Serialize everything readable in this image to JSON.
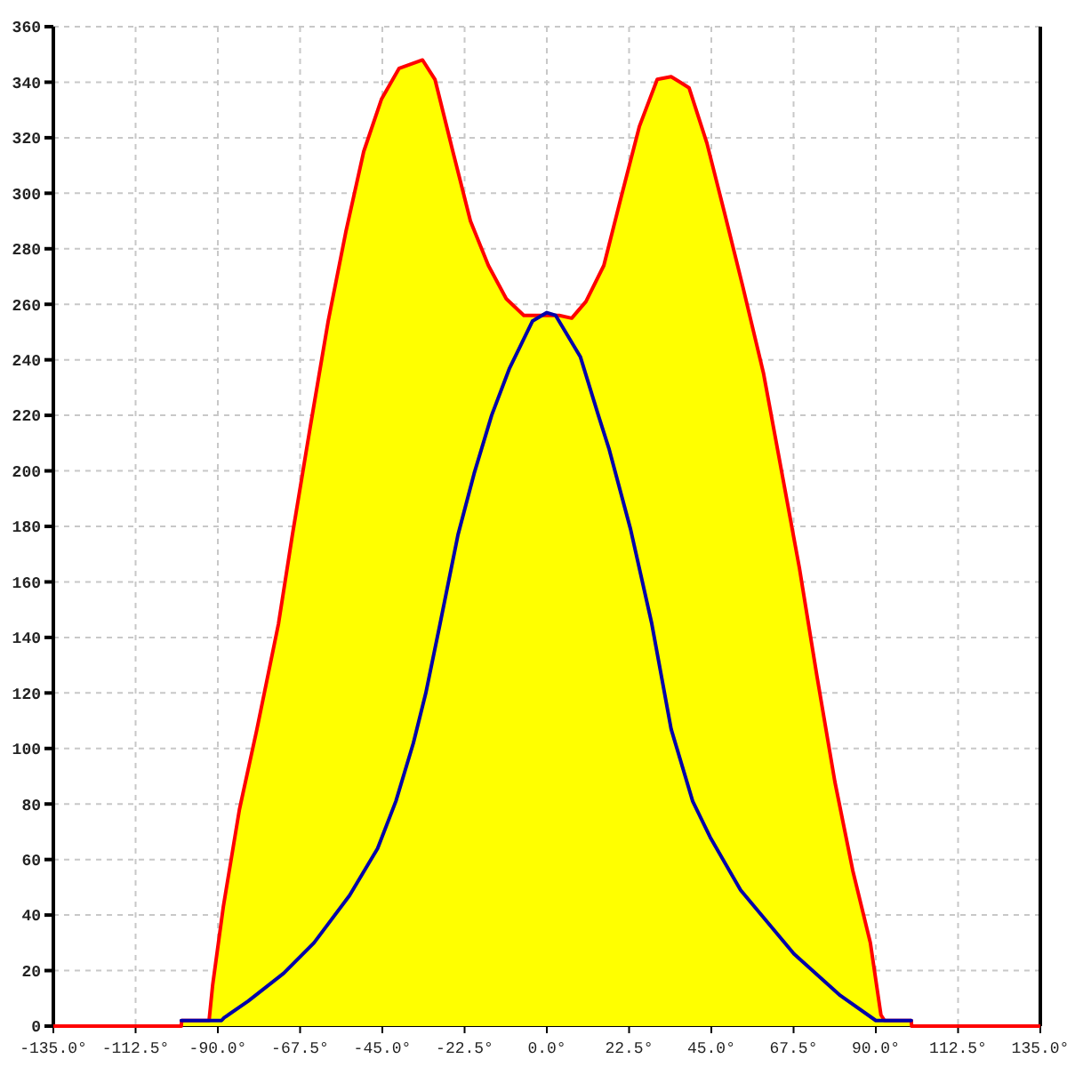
{
  "chart_data": {
    "type": "area",
    "xlim": [
      -135,
      135
    ],
    "ylim": [
      0,
      360
    ],
    "xticks": [
      {
        "value": -135,
        "label": "-135.0°"
      },
      {
        "value": -112.5,
        "label": "-112.5°"
      },
      {
        "value": -90,
        "label": "-90.0°"
      },
      {
        "value": -67.5,
        "label": "-67.5°"
      },
      {
        "value": -45,
        "label": "-45.0°"
      },
      {
        "value": -22.5,
        "label": "-22.5°"
      },
      {
        "value": 0,
        "label": "0.0°"
      },
      {
        "value": 22.5,
        "label": "22.5°"
      },
      {
        "value": 45,
        "label": "45.0°"
      },
      {
        "value": 67.5,
        "label": "67.5°"
      },
      {
        "value": 90,
        "label": "90.0°"
      },
      {
        "value": 112.5,
        "label": "112.5°"
      },
      {
        "value": 135,
        "label": "135.0°"
      }
    ],
    "yticks": [
      0,
      20,
      40,
      60,
      80,
      100,
      120,
      140,
      160,
      180,
      200,
      220,
      240,
      260,
      280,
      300,
      320,
      340,
      360
    ],
    "grid": true,
    "line_style": "solid",
    "marker": "none",
    "series": [
      {
        "color": "#ffff00",
        "x": [
          -135,
          -100,
          -99.9,
          -92.4,
          -91.4,
          -88.5,
          -84.1,
          -79.3,
          -73.4,
          -69.6,
          -64.7,
          -59.8,
          -55,
          -50.1,
          -45.2,
          -40.4,
          -34,
          -30.6,
          -25.7,
          -20.9,
          -16,
          -11.1,
          -6.3,
          -1.5,
          3.4,
          6.8,
          10.7,
          15.6,
          20.4,
          25.3,
          30.2,
          34,
          38.9,
          43.8,
          48.6,
          53.5,
          59.3,
          64.2,
          69.1,
          73.9,
          78.8,
          83.7,
          88.5,
          91.4,
          92.4,
          99.7,
          99.8,
          135
        ],
        "values": [
          0,
          0,
          2,
          2,
          15,
          43,
          78,
          107,
          145,
          177,
          216,
          254,
          286,
          315,
          334,
          345,
          348,
          341,
          315,
          290,
          274,
          262,
          256,
          256,
          256,
          255,
          261,
          274,
          299,
          324,
          341,
          342,
          338,
          318,
          293,
          267,
          235,
          200,
          165,
          126,
          88,
          56,
          30,
          4,
          2,
          2,
          0,
          0
        ]
      },
      {
        "type": "line",
        "color": "#0000aa",
        "x": [
          -100,
          -89,
          -88.3,
          -81.7,
          -72,
          -63.7,
          -54,
          -46.3,
          -41.3,
          -36.5,
          -33.1,
          -29.2,
          -24.3,
          -19.9,
          -15.1,
          -10.2,
          -3.9,
          0,
          2.4,
          9.2,
          14.1,
          17,
          22.9,
          28.7,
          34,
          39.9,
          44.7,
          53,
          67.6,
          80.3,
          90,
          99.7
        ],
        "values": [
          2,
          2,
          3,
          9,
          19,
          30,
          47,
          64,
          81,
          102,
          120,
          145,
          177,
          199,
          220,
          237,
          254,
          257,
          256,
          241,
          220,
          208,
          179,
          145,
          107,
          81,
          68,
          49,
          26,
          11,
          2,
          2
        ]
      }
    ]
  }
}
